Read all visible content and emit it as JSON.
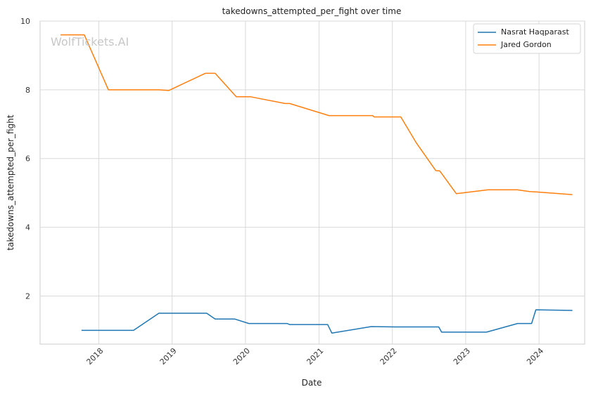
{
  "chart_data": {
    "type": "line",
    "title": "takedowns_attempted_per_fight over time",
    "xlabel": "Date",
    "ylabel": "takedowns_attempted_per_fight",
    "watermark": "WolfTickets.AI",
    "x_ticks": [
      "2018",
      "2019",
      "2020",
      "2021",
      "2022",
      "2023",
      "2024"
    ],
    "y_ticks": [
      2,
      4,
      6,
      8,
      10
    ],
    "xlim": [
      "2017-03-15",
      "2024-08-15"
    ],
    "ylim": [
      0.6,
      10
    ],
    "grid": true,
    "legend_position": "top-right",
    "series": [
      {
        "name": "Nasrat Haqparast",
        "color": "#1f77b4",
        "points": [
          [
            "2017-10-07",
            1.0
          ],
          [
            "2018-06-23",
            1.0
          ],
          [
            "2018-10-27",
            1.5
          ],
          [
            "2019-06-22",
            1.5
          ],
          [
            "2019-08-03",
            1.33
          ],
          [
            "2019-11-09",
            1.33
          ],
          [
            "2020-01-18",
            1.2
          ],
          [
            "2020-07-26",
            1.2
          ],
          [
            "2020-08-08",
            1.17
          ],
          [
            "2021-02-13",
            1.17
          ],
          [
            "2021-03-06",
            0.92
          ],
          [
            "2021-09-18",
            1.11
          ],
          [
            "2022-01-15",
            1.1
          ],
          [
            "2022-08-20",
            1.1
          ],
          [
            "2022-09-03",
            0.95
          ],
          [
            "2023-04-15",
            0.95
          ],
          [
            "2023-09-16",
            1.2
          ],
          [
            "2023-11-25",
            1.2
          ],
          [
            "2023-12-16",
            1.6
          ],
          [
            "2024-06-15",
            1.58
          ]
        ]
      },
      {
        "name": "Jared Gordon",
        "color": "#ff7f0e",
        "points": [
          [
            "2017-06-25",
            9.6
          ],
          [
            "2017-10-21",
            9.6
          ],
          [
            "2018-02-18",
            8.0
          ],
          [
            "2018-10-28",
            8.0
          ],
          [
            "2018-12-15",
            7.98
          ],
          [
            "2019-06-15",
            8.48
          ],
          [
            "2019-08-03",
            8.48
          ],
          [
            "2019-11-16",
            7.8
          ],
          [
            "2020-01-25",
            7.8
          ],
          [
            "2020-07-16",
            7.6
          ],
          [
            "2020-08-08",
            7.6
          ],
          [
            "2021-02-20",
            7.25
          ],
          [
            "2021-09-25",
            7.25
          ],
          [
            "2021-10-02",
            7.21
          ],
          [
            "2022-02-12",
            7.21
          ],
          [
            "2022-05-01",
            6.45
          ],
          [
            "2022-08-05",
            5.65
          ],
          [
            "2022-08-25",
            5.64
          ],
          [
            "2022-11-15",
            4.98
          ],
          [
            "2023-04-22",
            5.09
          ],
          [
            "2023-09-15",
            5.09
          ],
          [
            "2023-11-15",
            5.04
          ],
          [
            "2023-12-16",
            5.03
          ],
          [
            "2024-06-15",
            4.95
          ]
        ]
      }
    ]
  }
}
